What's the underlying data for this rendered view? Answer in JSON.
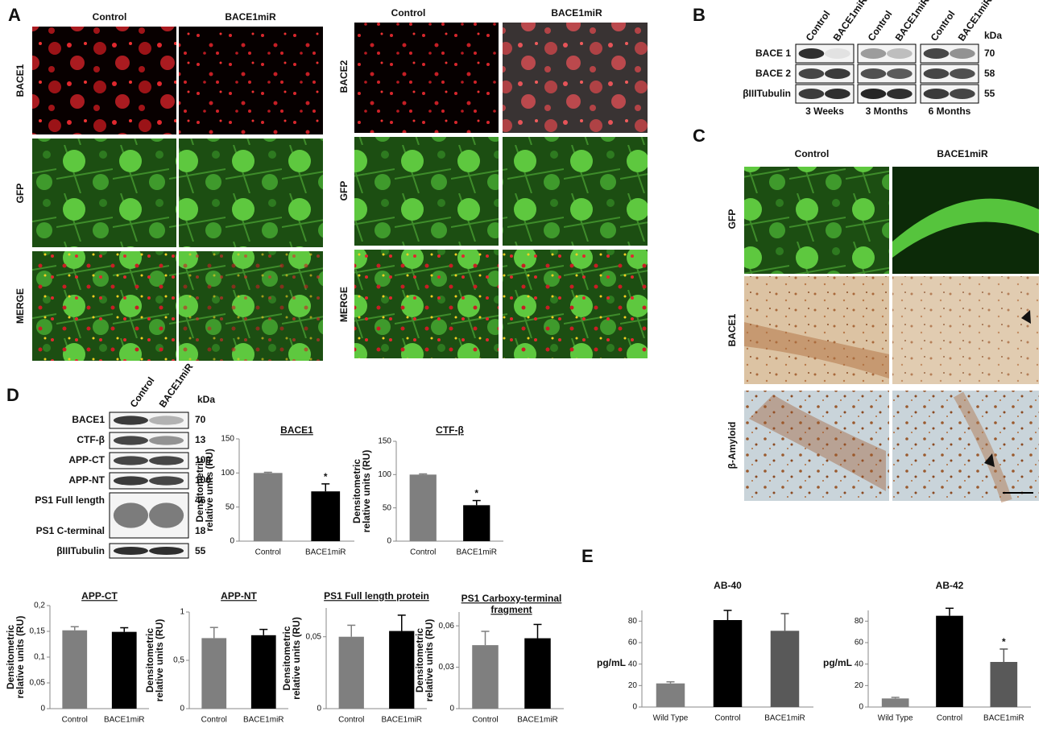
{
  "panel_labels": [
    "A",
    "B",
    "C",
    "D",
    "E"
  ],
  "panel_a": {
    "left": {
      "columns": [
        "Control",
        "BACE1miR"
      ],
      "rows": [
        "BACE1",
        "GFP",
        "MERGE"
      ]
    },
    "right": {
      "columns": [
        "Control",
        "BACE1miR"
      ],
      "rows": [
        "BACE2",
        "GFP",
        "MERGE"
      ]
    }
  },
  "panel_b": {
    "groups": [
      {
        "lanes": [
          "Control",
          "BACE1miR"
        ],
        "time": "3 Weeks"
      },
      {
        "lanes": [
          "Control",
          "BACE1miR"
        ],
        "time": "3 Months"
      },
      {
        "lanes": [
          "Control",
          "BACE1miR"
        ],
        "time": "6 Months"
      }
    ],
    "kda_header": "kDa",
    "rows": [
      {
        "label": "BACE 1",
        "kda": 70
      },
      {
        "label": "BACE 2",
        "kda": 58
      },
      {
        "label": "βIIITubulin",
        "kda": 55
      }
    ]
  },
  "panel_c": {
    "columns": [
      "Control",
      "BACE1miR"
    ],
    "rows": [
      "GFP",
      "BACE1",
      "β-Amyloid"
    ]
  },
  "panel_d_blot": {
    "lanes": [
      "Control",
      "BACE1miR"
    ],
    "kda_header": "kDa",
    "rows": [
      {
        "label": "BACE1",
        "kda": 70
      },
      {
        "label": "CTF-β",
        "kda": 13
      },
      {
        "label": "APP-CT",
        "kda": 100
      },
      {
        "label": "APP-NT",
        "kda": 100
      },
      {
        "label": "PS1 Full length",
        "kda": 46
      },
      {
        "label": "PS1 C-terminal",
        "kda": 18
      },
      {
        "label": "βIIITubulin",
        "kda": 55
      }
    ]
  },
  "chart_data": [
    {
      "type": "bar",
      "title": [
        "BACE1"
      ],
      "title_underlined": true,
      "ylabel": [
        "Densitometric",
        "relative units (RU)"
      ],
      "categories": [
        "Control",
        "BACE1miR"
      ],
      "values": [
        100,
        73
      ],
      "errors": [
        1,
        11
      ],
      "value_annotations": [
        null,
        "*"
      ],
      "colors": [
        "#7f7f7f",
        "#000000"
      ],
      "ylim": [
        0,
        150
      ],
      "yticks": [
        0,
        50,
        100,
        150
      ]
    },
    {
      "type": "bar",
      "title": [
        "CTF-β"
      ],
      "title_underlined": true,
      "ylabel": [
        "Densitometric",
        "relative units (RU)"
      ],
      "categories": [
        "Control",
        "BACE1miR"
      ],
      "values": [
        100,
        54
      ],
      "errors": [
        1,
        7
      ],
      "value_annotations": [
        null,
        "*"
      ],
      "colors": [
        "#7f7f7f",
        "#000000"
      ],
      "ylim": [
        0,
        150
      ],
      "yticks": [
        0,
        50,
        100,
        150
      ]
    },
    {
      "type": "bar",
      "title": [
        "APP-CT"
      ],
      "title_underlined": true,
      "ylabel": [
        "Densitometric",
        "relative units (RU)"
      ],
      "categories": [
        "Control",
        "BACE1miR"
      ],
      "values": [
        0.152,
        0.149
      ],
      "errors": [
        0.007,
        0.008
      ],
      "colors": [
        "#7f7f7f",
        "#000000"
      ],
      "ylim": [
        0,
        0.2
      ],
      "yticks": [
        0,
        {
          "value": 0.05,
          "label": "0,05"
        },
        {
          "value": 0.1,
          "label": "0,1"
        },
        {
          "value": 0.15,
          "label": "0,15"
        },
        {
          "value": 0.2,
          "label": "0,2"
        }
      ]
    },
    {
      "type": "bar",
      "title": [
        "APP-NT"
      ],
      "title_underlined": true,
      "ylabel": [
        "Densitometric",
        "relative units (RU)"
      ],
      "categories": [
        "Control",
        "BACE1miR"
      ],
      "values": [
        0.73,
        0.76
      ],
      "errors": [
        0.11,
        0.06
      ],
      "colors": [
        "#7f7f7f",
        "#000000"
      ],
      "ylim": [
        0,
        1
      ],
      "yticks": [
        0,
        {
          "value": 0.5,
          "label": "0,5"
        },
        1
      ]
    },
    {
      "type": "bar",
      "title": [
        "PS1 Full length protein"
      ],
      "title_underlined": true,
      "ylabel": [
        "Densitometric",
        "relative units (RU)"
      ],
      "categories": [
        "Control",
        "BACE1miR"
      ],
      "values": [
        0.05,
        0.054
      ],
      "errors": [
        0.008,
        0.011
      ],
      "colors": [
        "#7f7f7f",
        "#000000"
      ],
      "ylim": [
        0,
        0.07
      ],
      "yticks": [
        0,
        {
          "value": 0.05,
          "label": "0,05"
        }
      ]
    },
    {
      "type": "bar",
      "title": [
        "PS1 Carboxy-terminal",
        "fragment"
      ],
      "title_underlined": true,
      "ylabel": [
        "Densitometric",
        "relative units (RU)"
      ],
      "categories": [
        "Control",
        "BACE1miR"
      ],
      "values": [
        0.046,
        0.051
      ],
      "errors": [
        0.01,
        0.01
      ],
      "colors": [
        "#7f7f7f",
        "#000000"
      ],
      "ylim": [
        0,
        0.07
      ],
      "yticks": [
        0,
        {
          "value": 0.03,
          "label": "0,03"
        },
        {
          "value": 0.06,
          "label": "0,06"
        }
      ]
    },
    {
      "type": "bar",
      "title": [
        "AB-40"
      ],
      "title_underlined": false,
      "ylabel": "pg/mL",
      "categories": [
        "Wild Type",
        "Control",
        "BACE1miR"
      ],
      "values": [
        22,
        81,
        71
      ],
      "errors": [
        1.5,
        9,
        16
      ],
      "colors": [
        "#7f7f7f",
        "#000000",
        "#595959"
      ],
      "ylim": [
        0,
        90
      ],
      "yticks": [
        0,
        20,
        40,
        60,
        80
      ]
    },
    {
      "type": "bar",
      "title": [
        "AB-42"
      ],
      "title_underlined": false,
      "ylabel": "pg/mL",
      "categories": [
        "Wild Type",
        "Control",
        "BACE1miR"
      ],
      "values": [
        8,
        85,
        42
      ],
      "errors": [
        1,
        7,
        12
      ],
      "value_annotations": [
        null,
        null,
        "*"
      ],
      "colors": [
        "#7f7f7f",
        "#000000",
        "#595959"
      ],
      "ylim": [
        0,
        90
      ],
      "yticks": [
        0,
        20,
        40,
        60,
        80
      ]
    }
  ]
}
